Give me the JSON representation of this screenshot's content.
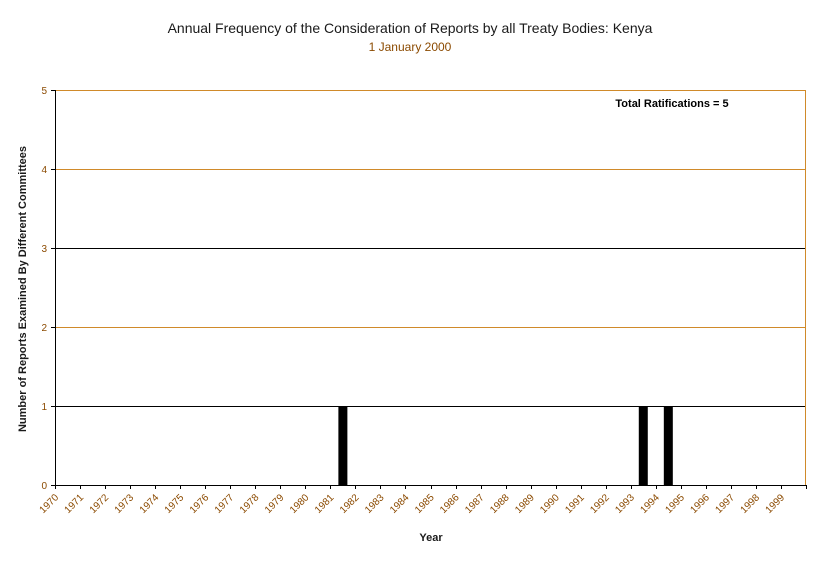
{
  "chart_data": {
    "type": "bar",
    "title": "Annual Frequency of the Consideration of Reports by all Treaty Bodies: Kenya",
    "subtitle": "1 January 2000",
    "xlabel": "Year",
    "ylabel": "Number of Reports Examined By Different Committees",
    "annotation": "Total Ratifications = 5",
    "categories": [
      "1970",
      "1971",
      "1972",
      "1973",
      "1974",
      "1975",
      "1976",
      "1977",
      "1978",
      "1979",
      "1980",
      "1981",
      "1982",
      "1983",
      "1984",
      "1985",
      "1986",
      "1987",
      "1988",
      "1989",
      "1990",
      "1991",
      "1992",
      "1993",
      "1994",
      "1995",
      "1996",
      "1997",
      "1998",
      "1999"
    ],
    "values": [
      0,
      0,
      0,
      0,
      0,
      0,
      0,
      0,
      0,
      0,
      0,
      1,
      0,
      0,
      0,
      0,
      0,
      0,
      0,
      0,
      0,
      0,
      0,
      1,
      1,
      0,
      0,
      0,
      0,
      0
    ],
    "ylim": [
      0,
      5
    ],
    "yticks": [
      0,
      1,
      2,
      3,
      4,
      5
    ],
    "grid": true,
    "legend": "none",
    "colors": {
      "bar": "#000000",
      "grid_black": "#000000",
      "grid_orange": "#d08a2a",
      "tick_text": "#8b4a00"
    }
  }
}
